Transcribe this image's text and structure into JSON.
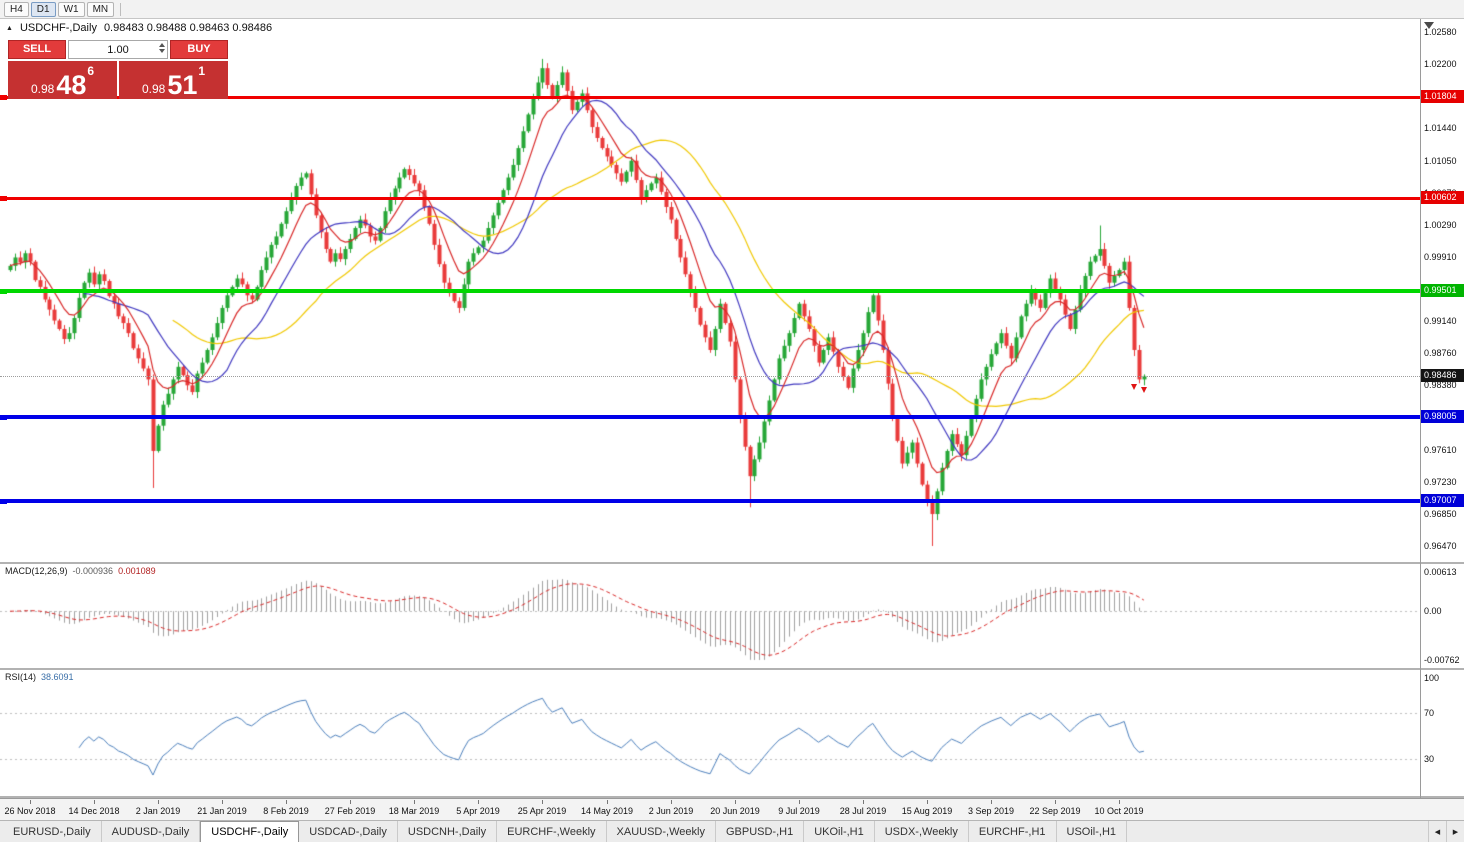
{
  "window": {
    "title_symbol": "USDCHF-,Daily",
    "ohlc": "0.98483 0.98488 0.98463 0.98486"
  },
  "icons": {
    "collapse": "▲",
    "tab_left": "◀",
    "tab_right": "▶"
  },
  "toolbar": {
    "timeframes": [
      {
        "label": "H4",
        "active": false
      },
      {
        "label": "D1",
        "active": true
      },
      {
        "label": "W1",
        "active": false
      },
      {
        "label": "MN",
        "active": false
      }
    ]
  },
  "trade_panel": {
    "sell_label": "SELL",
    "buy_label": "BUY",
    "volume": "1.00",
    "sell_price": {
      "prefix": "0.98",
      "big": "48",
      "sup": "6"
    },
    "buy_price": {
      "prefix": "0.98",
      "big": "51",
      "sup": "1"
    }
  },
  "price_axis": {
    "ticks": [
      "1.02580",
      "1.02200",
      "1.01440",
      "1.01050",
      "1.00670",
      "1.00290",
      "0.99910",
      "0.99140",
      "0.98760",
      "0.98380",
      "0.97610",
      "0.97230",
      "0.96850",
      "0.96470"
    ],
    "badges": [
      {
        "value": "1.01804",
        "color": "#e60000",
        "type": "resistance-level-badge"
      },
      {
        "value": "1.00602",
        "color": "#e60000",
        "type": "resistance-level-badge"
      },
      {
        "value": "0.99501",
        "color": "#00b400",
        "type": "pivot-level-badge"
      },
      {
        "value": "0.98486",
        "color": "#141414",
        "type": "last-price-badge"
      },
      {
        "value": "0.98005",
        "color": "#0000d8",
        "type": "support-level-badge"
      },
      {
        "value": "0.97007",
        "color": "#0000d8",
        "type": "support-level-badge"
      }
    ]
  },
  "indicators": {
    "macd": {
      "label": "MACD(12,26,9)",
      "main_value": "-0.000936",
      "signal_value": "0.001089",
      "scale": [
        "0.00613",
        "0.00",
        "-0.00762"
      ]
    },
    "rsi": {
      "label": "RSI(14)",
      "value": "38.6091",
      "scale": [
        "100",
        "70",
        "30"
      ]
    }
  },
  "time_axis": {
    "labels": [
      {
        "text": "26 Nov 2018",
        "bar": 4
      },
      {
        "text": "14 Dec 2018",
        "bar": 17
      },
      {
        "text": "2 Jan 2019",
        "bar": 30
      },
      {
        "text": "21 Jan 2019",
        "bar": 43
      },
      {
        "text": "8 Feb 2019",
        "bar": 56
      },
      {
        "text": "27 Feb 2019",
        "bar": 69
      },
      {
        "text": "18 Mar 2019",
        "bar": 82
      },
      {
        "text": "5 Apr 2019",
        "bar": 95
      },
      {
        "text": "25 Apr 2019",
        "bar": 108
      },
      {
        "text": "14 May 2019",
        "bar": 121
      },
      {
        "text": "2 Jun 2019",
        "bar": 134
      },
      {
        "text": "20 Jun 2019",
        "bar": 147
      },
      {
        "text": "9 Jul 2019",
        "bar": 160
      },
      {
        "text": "28 Jul 2019",
        "bar": 173
      },
      {
        "text": "15 Aug 2019",
        "bar": 186
      },
      {
        "text": "3 Sep 2019",
        "bar": 199
      },
      {
        "text": "22 Sep 2019",
        "bar": 212
      },
      {
        "text": "10 Oct 2019",
        "bar": 225
      }
    ]
  },
  "tabs": {
    "items": [
      "EURUSD-,Daily",
      "AUDUSD-,Daily",
      "USDCHF-,Daily",
      "USDCAD-,Daily",
      "USDCNH-,Daily",
      "EURCHF-,Weekly",
      "XAUUSD-,Weekly",
      "GBPUSD-,H1",
      "UKOil-,H1",
      "USDX-,Weekly",
      "EURCHF-,H1",
      "USOil-,H1"
    ],
    "active_index": 2
  },
  "chart_data": {
    "type": "candlestick",
    "symbol": "USDCHF",
    "timeframe": "Daily",
    "price_range": {
      "top": 1.0258,
      "bottom": 0.9647
    },
    "last_price": 0.98486,
    "levels": [
      {
        "price": 1.01804,
        "color": "#f00000",
        "width": 3
      },
      {
        "price": 1.00602,
        "color": "#f00000",
        "width": 3
      },
      {
        "price": 0.99501,
        "color": "#00d800",
        "width": 4
      },
      {
        "price": 0.98005,
        "color": "#0000e8",
        "width": 4
      },
      {
        "price": 0.97007,
        "color": "#0000e8",
        "width": 4
      }
    ],
    "trade_arrows": [
      {
        "bar": 228,
        "price": 0.9839
      },
      {
        "bar": 230,
        "price": 0.9836
      }
    ],
    "candles": {
      "first_open": 9975,
      "scale_divisor": 10000,
      "closes_x10000": [
        9980,
        9990,
        9984,
        9995,
        9985,
        9963,
        9955,
        9940,
        9928,
        9915,
        9905,
        9893,
        9900,
        9918,
        9942,
        9960,
        9972,
        9958,
        9970,
        9962,
        9944,
        9935,
        9920,
        9912,
        9900,
        9882,
        9870,
        9858,
        9845,
        9760,
        9790,
        9815,
        9828,
        9845,
        9860,
        9850,
        9838,
        9830,
        9852,
        9865,
        9880,
        9895,
        9912,
        9930,
        9945,
        9955,
        9965,
        9958,
        9945,
        9940,
        9955,
        9975,
        9990,
        10005,
        10015,
        10030,
        10045,
        10060,
        10075,
        10085,
        10090,
        10065,
        10040,
        10020,
        10000,
        9985,
        9995,
        9988,
        10000,
        10012,
        10025,
        10035,
        10028,
        10015,
        10010,
        10025,
        10045,
        10060,
        10072,
        10085,
        10095,
        10088,
        10078,
        10070,
        10050,
        10030,
        10005,
        9982,
        9960,
        9948,
        9938,
        9930,
        9958,
        9985,
        9995,
        10002,
        10010,
        10025,
        10040,
        10055,
        10070,
        10085,
        10100,
        10120,
        10140,
        10160,
        10180,
        10198,
        10215,
        10195,
        10180,
        10195,
        10210,
        10188,
        10165,
        10175,
        10185,
        10165,
        10145,
        10132,
        10120,
        10110,
        10100,
        10090,
        10080,
        10092,
        10105,
        10082,
        10060,
        10070,
        10078,
        10085,
        10068,
        10050,
        10035,
        10012,
        9990,
        9970,
        9950,
        9930,
        9910,
        9895,
        9880,
        9905,
        9935,
        9912,
        9890,
        9845,
        9800,
        9765,
        9730,
        9750,
        9770,
        9795,
        9820,
        9845,
        9870,
        9885,
        9900,
        9918,
        9935,
        9920,
        9905,
        9885,
        9865,
        9880,
        9895,
        9878,
        9860,
        9848,
        9835,
        9858,
        9880,
        9900,
        9925,
        9945,
        9915,
        9880,
        9840,
        9800,
        9772,
        9745,
        9758,
        9770,
        9745,
        9720,
        9700,
        9685,
        9712,
        9740,
        9760,
        9780,
        9768,
        9755,
        9778,
        9800,
        9822,
        9845,
        9860,
        9875,
        9888,
        9900,
        9885,
        9870,
        9895,
        9920,
        9935,
        9950,
        9940,
        9930,
        9948,
        9965,
        9952,
        9940,
        9922,
        9905,
        9928,
        9950,
        9968,
        9985,
        9992,
        10000,
        9980,
        9960,
        9968,
        9975,
        9985,
        9930,
        9880,
        9845,
        9849
      ],
      "special": {
        "29": {
          "low": 9716
        },
        "108": {
          "high": 10226
        },
        "150": {
          "low": 9693
        },
        "187": {
          "low": 9647
        },
        "221": {
          "high": 10028
        },
        "230": {
          "low": 9838
        }
      }
    },
    "moving_averages": [
      {
        "name": "slow",
        "color": "#f0c800",
        "period": 34,
        "method": "sma"
      },
      {
        "name": "mid",
        "color": "#4038c0",
        "period": 16,
        "method": "sma"
      },
      {
        "name": "fast",
        "color": "#d82828",
        "period": 8,
        "method": "ema"
      }
    ],
    "macd_panel": {
      "max": 0.00613,
      "min": -0.00762
    },
    "rsi_panel": {
      "max": 100,
      "min": 0,
      "levels": [
        70,
        30
      ]
    },
    "colors": {
      "up": "#27a737",
      "down": "#e93b3b",
      "macd_hist": "#a0a0a0",
      "macd_signal": "#d82828",
      "rsi": "#4a7ebb",
      "grid_dotted": "#bdbdbd"
    }
  }
}
